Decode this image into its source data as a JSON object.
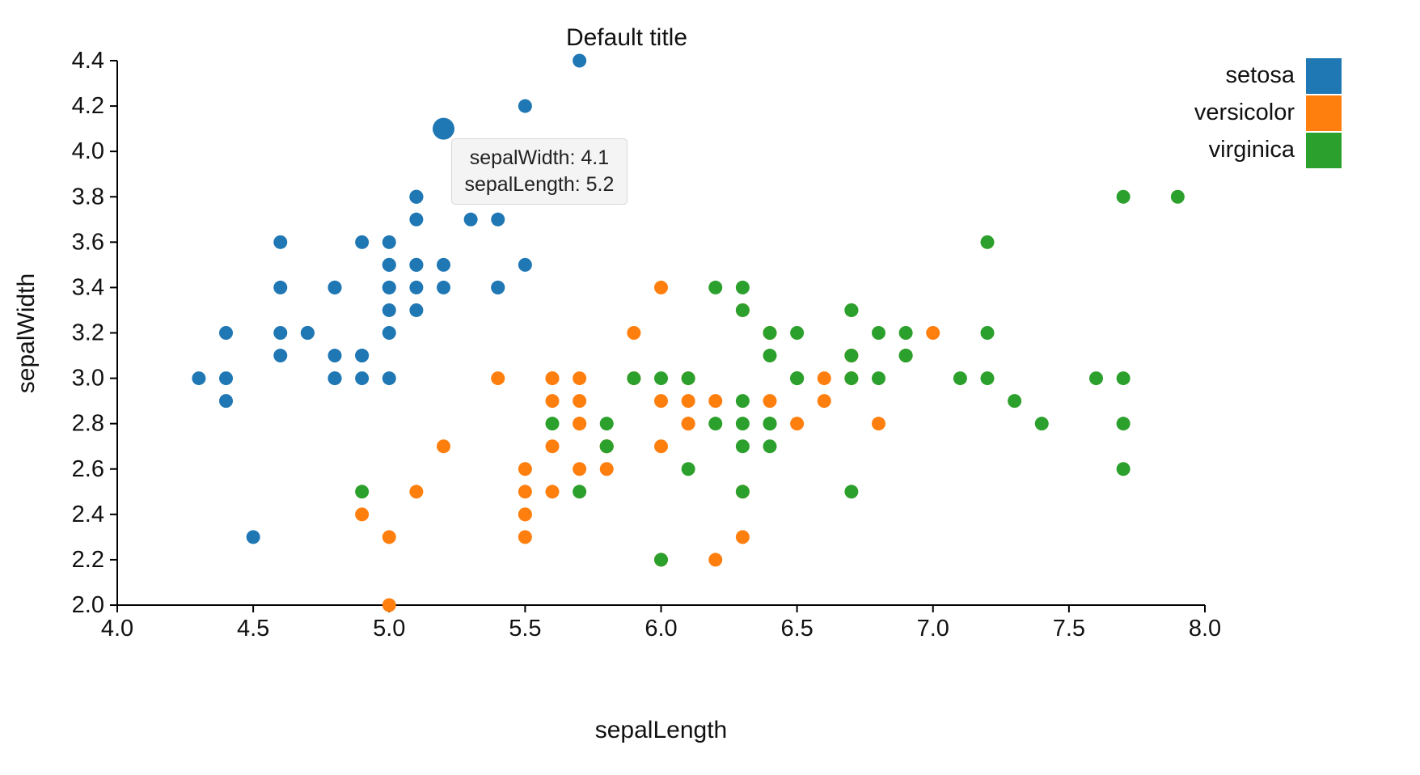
{
  "title": "Default title",
  "tooltip": {
    "lines": [
      "sepalWidth: 4.1",
      "sepalLength: 5.2"
    ]
  },
  "chart_data": {
    "type": "scatter",
    "title": "Default title",
    "xlabel": "sepalLength",
    "ylabel": "sepalWidth",
    "xlim": [
      4.0,
      8.0
    ],
    "ylim": [
      2.0,
      4.4
    ],
    "x_ticks": [
      "4.0",
      "4.5",
      "5.0",
      "5.5",
      "6.0",
      "6.5",
      "7.0",
      "7.5",
      "8.0"
    ],
    "y_ticks": [
      "2.0",
      "2.2",
      "2.4",
      "2.6",
      "2.8",
      "3.0",
      "3.2",
      "3.4",
      "3.6",
      "3.8",
      "4.0",
      "4.2",
      "4.4"
    ],
    "grid": false,
    "legend_position": "top-right",
    "series": [
      {
        "name": "setosa",
        "color": "#1f77b4",
        "points": [
          [
            5.1,
            3.5
          ],
          [
            4.9,
            3.0
          ],
          [
            4.7,
            3.2
          ],
          [
            4.6,
            3.1
          ],
          [
            5.0,
            3.6
          ],
          [
            5.4,
            3.9
          ],
          [
            4.6,
            3.4
          ],
          [
            5.0,
            3.4
          ],
          [
            4.4,
            2.9
          ],
          [
            4.9,
            3.1
          ],
          [
            5.4,
            3.7
          ],
          [
            4.8,
            3.4
          ],
          [
            4.8,
            3.0
          ],
          [
            4.3,
            3.0
          ],
          [
            5.8,
            4.0
          ],
          [
            5.7,
            4.4
          ],
          [
            5.4,
            3.9
          ],
          [
            5.1,
            3.5
          ],
          [
            5.7,
            3.8
          ],
          [
            5.1,
            3.8
          ],
          [
            5.4,
            3.4
          ],
          [
            5.1,
            3.7
          ],
          [
            4.6,
            3.6
          ],
          [
            5.1,
            3.3
          ],
          [
            4.8,
            3.4
          ],
          [
            5.0,
            3.0
          ],
          [
            5.0,
            3.4
          ],
          [
            5.2,
            3.5
          ],
          [
            5.2,
            3.4
          ],
          [
            4.7,
            3.2
          ],
          [
            4.8,
            3.1
          ],
          [
            5.4,
            3.4
          ],
          [
            5.2,
            4.1
          ],
          [
            5.5,
            4.2
          ],
          [
            4.9,
            3.1
          ],
          [
            5.0,
            3.2
          ],
          [
            5.5,
            3.5
          ],
          [
            4.9,
            3.6
          ],
          [
            4.4,
            3.0
          ],
          [
            5.1,
            3.4
          ],
          [
            5.0,
            3.5
          ],
          [
            4.5,
            2.3
          ],
          [
            4.4,
            3.2
          ],
          [
            5.0,
            3.5
          ],
          [
            5.1,
            3.8
          ],
          [
            4.8,
            3.0
          ],
          [
            5.1,
            3.8
          ],
          [
            4.6,
            3.2
          ],
          [
            5.3,
            3.7
          ],
          [
            5.0,
            3.3
          ]
        ]
      },
      {
        "name": "versicolor",
        "color": "#ff7f0e",
        "points": [
          [
            7.0,
            3.2
          ],
          [
            6.4,
            3.2
          ],
          [
            6.9,
            3.1
          ],
          [
            5.5,
            2.3
          ],
          [
            6.5,
            2.8
          ],
          [
            5.7,
            2.8
          ],
          [
            6.3,
            3.3
          ],
          [
            4.9,
            2.4
          ],
          [
            6.6,
            2.9
          ],
          [
            5.2,
            2.7
          ],
          [
            5.0,
            2.0
          ],
          [
            5.9,
            3.0
          ],
          [
            6.0,
            2.2
          ],
          [
            6.1,
            2.9
          ],
          [
            5.6,
            2.9
          ],
          [
            6.7,
            3.1
          ],
          [
            5.6,
            3.0
          ],
          [
            5.8,
            2.7
          ],
          [
            6.2,
            2.2
          ],
          [
            5.6,
            2.5
          ],
          [
            5.9,
            3.2
          ],
          [
            6.1,
            2.8
          ],
          [
            6.3,
            2.5
          ],
          [
            6.1,
            2.8
          ],
          [
            6.4,
            2.9
          ],
          [
            6.6,
            3.0
          ],
          [
            6.8,
            2.8
          ],
          [
            6.7,
            3.0
          ],
          [
            6.0,
            2.9
          ],
          [
            5.7,
            2.6
          ],
          [
            5.5,
            2.4
          ],
          [
            5.5,
            2.4
          ],
          [
            5.8,
            2.7
          ],
          [
            6.0,
            2.7
          ],
          [
            5.4,
            3.0
          ],
          [
            6.0,
            3.4
          ],
          [
            6.7,
            3.1
          ],
          [
            6.3,
            2.3
          ],
          [
            5.6,
            3.0
          ],
          [
            5.5,
            2.5
          ],
          [
            5.5,
            2.6
          ],
          [
            6.1,
            3.0
          ],
          [
            5.8,
            2.6
          ],
          [
            5.0,
            2.3
          ],
          [
            5.6,
            2.7
          ],
          [
            5.7,
            3.0
          ],
          [
            5.7,
            2.9
          ],
          [
            6.2,
            2.9
          ],
          [
            5.1,
            2.5
          ],
          [
            5.7,
            2.8
          ]
        ]
      },
      {
        "name": "virginica",
        "color": "#2ca02c",
        "points": [
          [
            6.3,
            3.3
          ],
          [
            5.8,
            2.7
          ],
          [
            7.1,
            3.0
          ],
          [
            6.3,
            2.9
          ],
          [
            6.5,
            3.0
          ],
          [
            7.6,
            3.0
          ],
          [
            4.9,
            2.5
          ],
          [
            7.3,
            2.9
          ],
          [
            6.7,
            2.5
          ],
          [
            7.2,
            3.6
          ],
          [
            6.5,
            3.2
          ],
          [
            6.4,
            2.7
          ],
          [
            6.8,
            3.0
          ],
          [
            5.7,
            2.5
          ],
          [
            5.8,
            2.8
          ],
          [
            6.4,
            3.2
          ],
          [
            6.5,
            3.0
          ],
          [
            7.7,
            3.8
          ],
          [
            7.7,
            2.6
          ],
          [
            6.0,
            2.2
          ],
          [
            6.9,
            3.2
          ],
          [
            5.6,
            2.8
          ],
          [
            7.7,
            2.8
          ],
          [
            6.3,
            2.7
          ],
          [
            6.7,
            3.3
          ],
          [
            7.2,
            3.2
          ],
          [
            6.2,
            2.8
          ],
          [
            6.1,
            3.0
          ],
          [
            6.4,
            2.8
          ],
          [
            7.2,
            3.0
          ],
          [
            7.4,
            2.8
          ],
          [
            7.9,
            3.8
          ],
          [
            6.4,
            2.8
          ],
          [
            6.3,
            2.8
          ],
          [
            6.1,
            2.6
          ],
          [
            7.7,
            3.0
          ],
          [
            6.3,
            3.4
          ],
          [
            6.4,
            3.1
          ],
          [
            6.0,
            3.0
          ],
          [
            6.9,
            3.1
          ],
          [
            6.7,
            3.1
          ],
          [
            6.9,
            3.1
          ],
          [
            5.8,
            2.7
          ],
          [
            6.8,
            3.2
          ],
          [
            6.7,
            3.3
          ],
          [
            6.7,
            3.0
          ],
          [
            6.3,
            2.5
          ],
          [
            6.5,
            3.0
          ],
          [
            6.2,
            3.4
          ],
          [
            5.9,
            3.0
          ]
        ]
      }
    ],
    "highlight": {
      "series": "setosa",
      "point": [
        5.2,
        4.1
      ]
    }
  }
}
